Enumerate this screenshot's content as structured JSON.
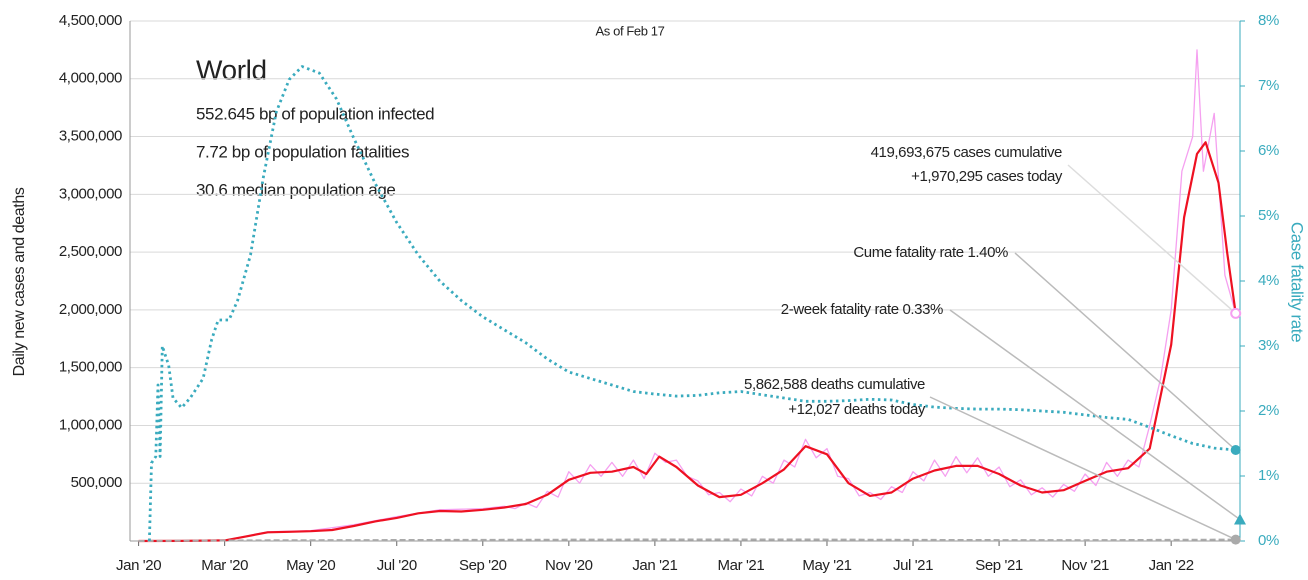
{
  "chart_data": {
    "type": "line",
    "subtitle": "As of Feb 17",
    "info": {
      "title": "World",
      "lines": [
        "552.645 bp of population infected",
        "7.72 bp of population fatalities",
        "30.6 median population age"
      ]
    },
    "ylabel": "Daily new cases and deaths",
    "y2label": "Case fatality rate",
    "xlim": [
      -0.2,
      25.6
    ],
    "xticks": [
      {
        "value": 0,
        "label": "Jan '20"
      },
      {
        "value": 2,
        "label": "Mar '20"
      },
      {
        "value": 4,
        "label": "May '20"
      },
      {
        "value": 6,
        "label": "Jul '20"
      },
      {
        "value": 8,
        "label": "Sep '20"
      },
      {
        "value": 10,
        "label": "Nov '20"
      },
      {
        "value": 12,
        "label": "Jan '21"
      },
      {
        "value": 14,
        "label": "Mar '21"
      },
      {
        "value": 16,
        "label": "May '21"
      },
      {
        "value": 18,
        "label": "Jul '21"
      },
      {
        "value": 20,
        "label": "Sep '21"
      },
      {
        "value": 22,
        "label": "Nov '21"
      },
      {
        "value": 24,
        "label": "Jan '22"
      }
    ],
    "ylim": [
      0,
      4500000
    ],
    "yticks": [
      {
        "value": 500000,
        "label": "500,000"
      },
      {
        "value": 1000000,
        "label": "1,000,000"
      },
      {
        "value": 1500000,
        "label": "1,500,000"
      },
      {
        "value": 2000000,
        "label": "2,000,000"
      },
      {
        "value": 2500000,
        "label": "2,500,000"
      },
      {
        "value": 3000000,
        "label": "3,000,000"
      },
      {
        "value": 3500000,
        "label": "3,500,000"
      },
      {
        "value": 4000000,
        "label": "4,000,000"
      },
      {
        "value": 4500000,
        "label": "4,500,000"
      }
    ],
    "y2lim": [
      0,
      8
    ],
    "y2ticks": [
      {
        "value": 0,
        "label": "0%"
      },
      {
        "value": 1,
        "label": "1%"
      },
      {
        "value": 2,
        "label": "2%"
      },
      {
        "value": 3,
        "label": "3%"
      },
      {
        "value": 4,
        "label": "4%"
      },
      {
        "value": 5,
        "label": "5%"
      },
      {
        "value": 6,
        "label": "6%"
      },
      {
        "value": 7,
        "label": "7%"
      },
      {
        "value": 8,
        "label": "8%"
      }
    ],
    "grid": true,
    "series": [
      {
        "color": "#f5a0f0",
        "style": "thin",
        "x": [
          0,
          2,
          3,
          4,
          5,
          6,
          7,
          8,
          8.5,
          8.75,
          9,
          9.25,
          9.5,
          9.75,
          10,
          10.25,
          10.5,
          10.75,
          11,
          11.25,
          11.5,
          11.75,
          12,
          12.25,
          12.5,
          12.75,
          13,
          13.25,
          13.5,
          13.75,
          14,
          14.25,
          14.5,
          14.75,
          15,
          15.25,
          15.5,
          15.75,
          16,
          16.25,
          16.5,
          16.75,
          17,
          17.25,
          17.5,
          17.75,
          18,
          18.25,
          18.5,
          18.75,
          19,
          19.25,
          19.5,
          19.75,
          20,
          20.25,
          20.5,
          20.75,
          21,
          21.25,
          21.5,
          21.75,
          22,
          22.25,
          22.5,
          22.75,
          23,
          23.25,
          23.5,
          23.75,
          24,
          24.25,
          24.5,
          24.6,
          24.75,
          25,
          25.25,
          25.5
        ],
        "values": [
          0,
          5000,
          80000,
          90000,
          140000,
          210000,
          270000,
          280000,
          300000,
          280000,
          330000,
          290000,
          430000,
          380000,
          600000,
          500000,
          660000,
          560000,
          680000,
          560000,
          700000,
          540000,
          760000,
          680000,
          700000,
          560000,
          520000,
          400000,
          420000,
          340000,
          450000,
          390000,
          560000,
          500000,
          700000,
          640000,
          880000,
          720000,
          800000,
          560000,
          540000,
          390000,
          420000,
          360000,
          470000,
          420000,
          600000,
          520000,
          700000,
          560000,
          730000,
          590000,
          720000,
          560000,
          640000,
          470000,
          530000,
          400000,
          460000,
          380000,
          490000,
          430000,
          580000,
          480000,
          680000,
          560000,
          700000,
          640000,
          1000000,
          1400000,
          2000000,
          3200000,
          3500000,
          4250000,
          3200000,
          3700000,
          2300000,
          1970000
        ]
      },
      {
        "color": "#ee1122",
        "style": "solid",
        "x": [
          0,
          1,
          2,
          2.5,
          3,
          3.5,
          4,
          4.5,
          5,
          5.5,
          6,
          6.5,
          7,
          7.5,
          8,
          8.5,
          9,
          9.5,
          10,
          10.5,
          11,
          11.5,
          11.8,
          12.1,
          12.5,
          13,
          13.5,
          14,
          14.5,
          15,
          15.5,
          16,
          16.5,
          17,
          17.5,
          18,
          18.5,
          19,
          19.5,
          20,
          20.5,
          21,
          21.5,
          22,
          22.5,
          23,
          23.5,
          24,
          24.3,
          24.6,
          24.8,
          25.1,
          25.3,
          25.5
        ],
        "values": [
          0,
          1000,
          5000,
          40000,
          75000,
          80000,
          85000,
          95000,
          130000,
          170000,
          200000,
          240000,
          260000,
          255000,
          270000,
          290000,
          320000,
          400000,
          530000,
          590000,
          600000,
          640000,
          580000,
          730000,
          640000,
          480000,
          380000,
          400000,
          500000,
          620000,
          820000,
          750000,
          500000,
          390000,
          420000,
          540000,
          610000,
          650000,
          650000,
          580000,
          480000,
          420000,
          440000,
          520000,
          600000,
          630000,
          800000,
          1700000,
          2800000,
          3350000,
          3450000,
          3100000,
          2500000,
          1970000
        ]
      },
      {
        "color": "#aaaaaa",
        "style": "dashed",
        "x": [
          0,
          3,
          12,
          15.5,
          19,
          22,
          25.5
        ],
        "values": [
          0,
          6000,
          13000,
          13000,
          9000,
          7000,
          12027
        ]
      },
      {
        "color": "#3aabbe",
        "style": "dotted",
        "axis": "y2",
        "x": [
          0.25,
          0.3,
          0.4,
          0.45,
          0.5,
          0.55,
          0.7,
          0.8,
          1.0,
          1.2,
          1.4,
          1.5,
          1.7,
          1.85,
          2.1,
          2.3,
          2.6,
          2.9,
          3.2,
          3.5,
          3.8,
          4.2,
          4.6,
          5,
          5.5,
          6,
          6.5,
          7,
          7.5,
          8,
          8.5,
          9,
          9.5,
          10,
          10.5,
          11,
          11.5,
          12,
          12.5,
          13,
          13.5,
          14,
          14.5,
          15,
          15.5,
          16,
          16.5,
          17,
          17.5,
          18,
          18.5,
          19,
          19.5,
          20,
          20.5,
          21,
          21.5,
          22,
          22.5,
          23,
          23.5,
          24,
          24.5,
          25,
          25.5
        ],
        "values": [
          0,
          1.2,
          1.3,
          2.4,
          1.3,
          3.0,
          2.7,
          2.2,
          2.05,
          2.2,
          2.4,
          2.5,
          3.1,
          3.4,
          3.4,
          3.7,
          4.4,
          5.6,
          6.6,
          7.1,
          7.3,
          7.2,
          6.8,
          6.2,
          5.5,
          4.9,
          4.4,
          4.0,
          3.7,
          3.45,
          3.25,
          3.05,
          2.8,
          2.6,
          2.5,
          2.4,
          2.3,
          2.26,
          2.23,
          2.24,
          2.28,
          2.3,
          2.25,
          2.2,
          2.15,
          2.15,
          2.16,
          2.18,
          2.17,
          2.1,
          2.06,
          2.04,
          2.03,
          2.03,
          2.02,
          2.0,
          1.98,
          1.94,
          1.9,
          1.87,
          1.75,
          1.62,
          1.5,
          1.43,
          1.4
        ]
      }
    ],
    "two_week_fatality_rate": {
      "value": 0.33,
      "axis": "y2",
      "color": "#3aabbe"
    },
    "annotations": [
      {
        "lines": [
          "419,693,675 cases cumulative",
          "+1,970,295 cases today"
        ]
      },
      {
        "lines": [
          "Cume fatality rate 1.40%"
        ]
      },
      {
        "lines": [
          "2-week fatality rate 0.33%"
        ]
      },
      {
        "lines": [
          "5,862,588 deaths cumulative",
          "+12,027 deaths today"
        ]
      }
    ]
  }
}
